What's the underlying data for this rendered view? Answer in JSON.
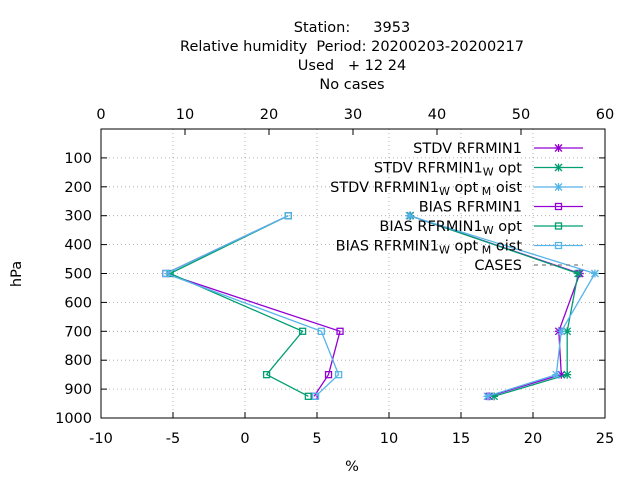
{
  "chart_data": {
    "type": "line",
    "title_lines": [
      "Station:     3953",
      "Relative humidity  Period: 20200203-20200217",
      "Used   + 12 24",
      "No cases"
    ],
    "xlabel": "%",
    "ylabel": "hPa",
    "xlim": [
      -10,
      25
    ],
    "ylim": [
      1000,
      0
    ],
    "x_ticks": [
      "-10",
      "-5",
      "0",
      "5",
      "10",
      "15",
      "20",
      "25"
    ],
    "x_tick_values": [
      -10,
      -5,
      0,
      5,
      10,
      15,
      20,
      25
    ],
    "x2lim": [
      0,
      60
    ],
    "x2_ticks": [
      "0",
      "10",
      "20",
      "30",
      "40",
      "50",
      "60"
    ],
    "x2_tick_values": [
      0,
      10,
      20,
      30,
      40,
      50,
      60
    ],
    "y_ticks": [
      "100",
      "200",
      "300",
      "400",
      "500",
      "600",
      "700",
      "800",
      "900",
      "1000"
    ],
    "y_tick_values": [
      100,
      200,
      300,
      400,
      500,
      600,
      700,
      800,
      900,
      1000
    ],
    "grid": true,
    "legend_position": "top-right",
    "series": [
      {
        "name": "STDV RFRMIN1",
        "axis": "x2",
        "marker": "x-star",
        "color": "#9400d3",
        "points": [
          [
            36.8,
            300
          ],
          [
            57.0,
            500
          ],
          [
            54.5,
            700
          ],
          [
            54.8,
            850
          ],
          [
            46.2,
            925
          ]
        ]
      },
      {
        "name": "STDV RFRMIN1",
        "sub1": "W",
        "mid1": "opt",
        "axis": "x2",
        "marker": "x-star",
        "color": "#009e73",
        "points": [
          [
            36.8,
            300
          ],
          [
            56.8,
            500
          ],
          [
            55.5,
            700
          ],
          [
            55.5,
            850
          ],
          [
            46.8,
            925
          ]
        ]
      },
      {
        "name": "STDV RFRMIN1",
        "sub1": "W",
        "mid1": "opt",
        "sub2": "M",
        "mid2": "oist",
        "axis": "x2",
        "marker": "x-star",
        "color": "#56b4e9",
        "points": [
          [
            36.7,
            300
          ],
          [
            58.8,
            500
          ],
          [
            54.8,
            700
          ],
          [
            54.2,
            850
          ],
          [
            46.0,
            925
          ]
        ]
      },
      {
        "name": "BIAS RFRMIN1",
        "axis": "x1",
        "marker": "square",
        "color": "#9400d3",
        "points": [
          [
            3.0,
            300
          ],
          [
            -5.5,
            500
          ],
          [
            6.6,
            700
          ],
          [
            5.8,
            850
          ],
          [
            4.8,
            925
          ]
        ]
      },
      {
        "name": "BIAS RFRMIN1",
        "sub1": "W",
        "mid1": "opt",
        "axis": "x1",
        "marker": "square",
        "color": "#009e73",
        "points": [
          [
            3.0,
            300
          ],
          [
            -5.2,
            500
          ],
          [
            4.0,
            700
          ],
          [
            1.5,
            850
          ],
          [
            4.4,
            925
          ]
        ]
      },
      {
        "name": "BIAS RFRMIN1",
        "sub1": "W",
        "mid1": "opt",
        "sub2": "M",
        "mid2": "oist",
        "axis": "x1",
        "marker": "square",
        "color": "#56b4e9",
        "points": [
          [
            3.0,
            300
          ],
          [
            -5.5,
            500
          ],
          [
            5.3,
            700
          ],
          [
            6.5,
            850
          ],
          [
            4.9,
            925
          ]
        ]
      },
      {
        "name": "CASES",
        "axis": "x1",
        "marker": "none",
        "dashed": true,
        "color": "#808080",
        "points": []
      }
    ]
  }
}
